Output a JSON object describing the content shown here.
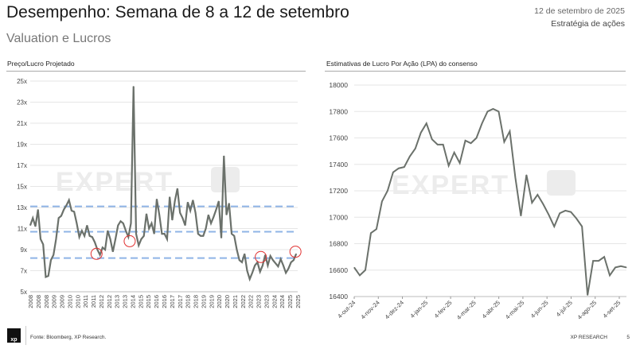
{
  "header": {
    "title": "Desempenho: Semana de 8 a 12 de setembro",
    "subtitle": "Valuation e Lucros",
    "date": "12 de setembro de 2025",
    "section": "Estratégia de ações"
  },
  "footer": {
    "source": "Fonte: Bloomberg, XP Research.",
    "brand": "XP RESEARCH",
    "page": "5",
    "logo": "xp"
  },
  "watermark": "EXPERT xp",
  "colors": {
    "line": "#6b716b",
    "dashed": "#8fb4e6",
    "circle": "#e03030",
    "grid": "#e6e6e6"
  },
  "chart_data": [
    {
      "type": "line",
      "title": "Preço/Lucro Projetado",
      "ylim": [
        5,
        25
      ],
      "yticks": [
        "5x",
        "7x",
        "9x",
        "11x",
        "13x",
        "15x",
        "17x",
        "19x",
        "21x",
        "23x",
        "25x"
      ],
      "xticklabels": [
        "2008",
        "2008",
        "2008",
        "2009",
        "2009",
        "2010",
        "2010",
        "2011",
        "2011",
        "2012",
        "2012",
        "2013",
        "2013",
        "2014",
        "2015",
        "2015",
        "2016",
        "2016",
        "2017",
        "2017",
        "2018",
        "2018",
        "2019",
        "2019",
        "2020",
        "2020",
        "2021",
        "2022",
        "2022",
        "2023",
        "2023",
        "2024",
        "2024",
        "2025",
        "2025"
      ],
      "xlim": [
        2008,
        2025.75
      ],
      "reference_lines": [
        13.1,
        10.7,
        8.2
      ],
      "highlight_points": [
        [
          2012.4,
          8.6
        ],
        [
          2014.6,
          9.8
        ],
        [
          2023.3,
          8.3
        ],
        [
          2025.6,
          8.8
        ]
      ],
      "values": [
        11.3,
        12,
        11.2,
        12.8,
        10,
        9.5,
        6.4,
        6.5,
        8,
        8.5,
        10,
        12,
        12.2,
        12.8,
        13.2,
        13.7,
        12.7,
        12.6,
        11.5,
        10.2,
        10.8,
        10.3,
        11.3,
        10.3,
        10.2,
        9.7,
        9,
        8.5,
        9.2,
        9,
        10.8,
        10,
        8.8,
        10,
        11.3,
        11.7,
        11.5,
        10.8,
        10.2,
        11.5,
        24.5,
        10.5,
        9.4,
        10,
        10.3,
        12.4,
        11,
        11.5,
        10.5,
        13.8,
        12.3,
        10.5,
        10.5,
        10,
        14,
        11.8,
        13.6,
        14.8,
        12.5,
        12,
        11.3,
        13.5,
        12.7,
        13.7,
        12.5,
        10.5,
        10.3,
        10.3,
        11,
        12.3,
        11.5,
        12.1,
        12.8,
        13.6,
        10.1,
        17.9,
        12.3,
        13.4,
        10.5,
        10.3,
        9,
        8,
        7.8,
        8.6,
        7,
        6.2,
        6.8,
        7.5,
        7.8,
        6.9,
        7.5,
        8.5,
        7.5,
        8.4,
        8,
        7.7,
        7.4,
        8.1,
        7.5,
        6.8,
        7.2,
        7.8,
        8,
        8.6
      ]
    },
    {
      "type": "line",
      "title": "Estimativas de Lucro Por Ação (LPA) do consenso",
      "ylim": [
        16400,
        18000
      ],
      "yticks": [
        "16400",
        "16600",
        "16800",
        "17000",
        "17200",
        "17400",
        "17600",
        "17800",
        "18000"
      ],
      "xticklabels": [
        "4-out-24",
        "4-nov-24",
        "4-dez-24",
        "4-jan-25",
        "4-fev-25",
        "4-mar-25",
        "4-abr-25",
        "4-mai-25",
        "4-jun-25",
        "4-jul-25",
        "4-ago-25",
        "4-set-25"
      ],
      "values": [
        16620,
        16560,
        16600,
        16880,
        16910,
        17120,
        17200,
        17340,
        17370,
        17380,
        17460,
        17520,
        17640,
        17710,
        17590,
        17550,
        17550,
        17390,
        17490,
        17410,
        17580,
        17560,
        17600,
        17710,
        17800,
        17820,
        17800,
        17570,
        17650,
        17300,
        17010,
        17320,
        17110,
        17170,
        17100,
        17020,
        16930,
        17030,
        17050,
        17040,
        16990,
        16930,
        16410,
        16670,
        16670,
        16700,
        16560,
        16620,
        16630,
        16620
      ]
    }
  ]
}
